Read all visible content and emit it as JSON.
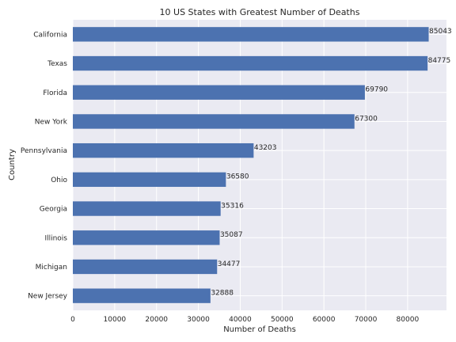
{
  "chart_data": {
    "type": "bar",
    "orientation": "horizontal",
    "title": "10 US States with Greatest Number of Deaths",
    "xlabel": "Number of Deaths",
    "ylabel": "Country",
    "categories": [
      "California",
      "Texas",
      "Florida",
      "New York",
      "Pennsylvania",
      "Ohio",
      "Georgia",
      "Illinois",
      "Michigan",
      "New Jersey"
    ],
    "values": [
      85043,
      84775,
      69790,
      67300,
      43203,
      36580,
      35316,
      35087,
      34477,
      32888
    ],
    "xlim": [
      0,
      89295
    ],
    "xticks": [
      0,
      10000,
      20000,
      30000,
      40000,
      50000,
      60000,
      70000,
      80000
    ],
    "xtick_labels": [
      "0",
      "10000",
      "20000",
      "30000",
      "40000",
      "50000",
      "60000",
      "70000",
      "80000"
    ],
    "grid": true,
    "colors": {
      "bar": "#4c72b0",
      "plot_background": "#eaeaf2",
      "grid": "#ffffff"
    }
  }
}
